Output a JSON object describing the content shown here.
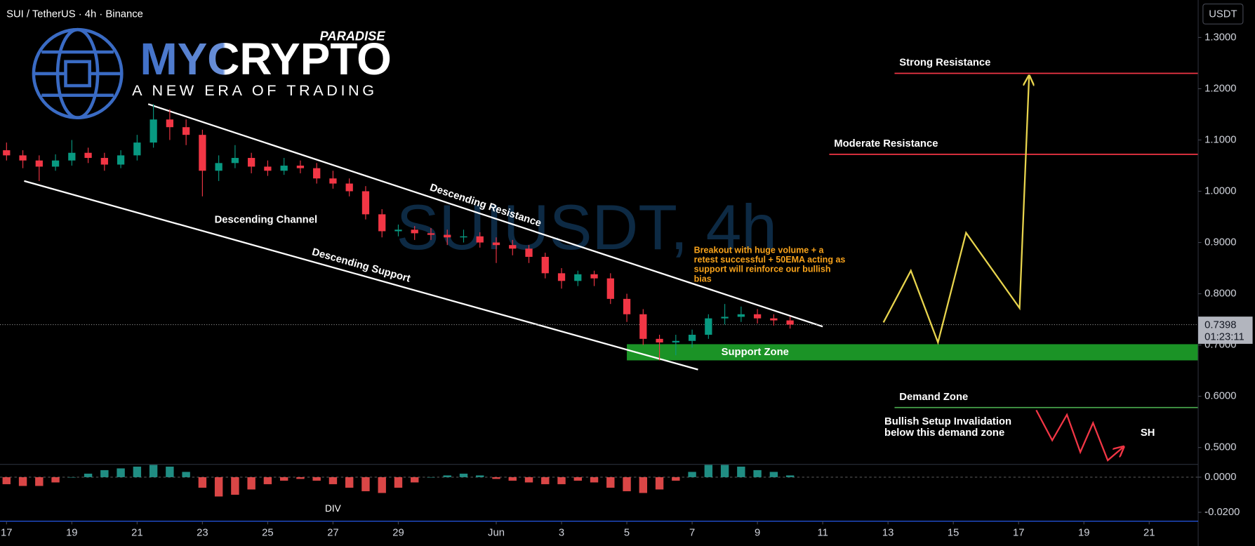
{
  "header": {
    "symbol": "SUI / TetherUS · 4h · Binance",
    "watermark": "SUIUSDT, 4h",
    "logo": {
      "brand": "MYCRYPTO",
      "tag": "PARADISE",
      "slogan": "A NEW ERA OF TRADING"
    }
  },
  "chart_data": {
    "type": "candlestick",
    "x": [
      0,
      0.5,
      1,
      1.5,
      2,
      2.5,
      3,
      3.5,
      4,
      4.5,
      5,
      5.5,
      6,
      6.5,
      7,
      7.5,
      8,
      8.5,
      9,
      9.5,
      10,
      10.5,
      11,
      11.5,
      12,
      12.5,
      13,
      13.5,
      14,
      14.5,
      15,
      15.5,
      16,
      16.5,
      17,
      17.5,
      18,
      18.5,
      19,
      19.5,
      20,
      20.5,
      21,
      21.5,
      22,
      22.5,
      23,
      23.5,
      24
    ],
    "open": [
      1.08,
      1.07,
      1.06,
      1.048,
      1.06,
      1.075,
      1.065,
      1.052,
      1.07,
      1.095,
      1.14,
      1.125,
      1.11,
      1.04,
      1.055,
      1.065,
      1.048,
      1.04,
      1.05,
      1.045,
      1.025,
      1.015,
      1.0,
      0.955,
      0.922,
      0.925,
      0.918,
      0.915,
      0.91,
      0.912,
      0.9,
      0.895,
      0.888,
      0.872,
      0.84,
      0.825,
      0.838,
      0.83,
      0.79,
      0.76,
      0.712,
      0.705,
      0.708,
      0.72,
      0.752,
      0.755,
      0.76,
      0.752,
      0.748
    ],
    "high": [
      1.095,
      1.08,
      1.07,
      1.072,
      1.1,
      1.085,
      1.075,
      1.08,
      1.11,
      1.17,
      1.16,
      1.14,
      1.12,
      1.07,
      1.09,
      1.075,
      1.06,
      1.065,
      1.06,
      1.055,
      1.04,
      1.025,
      1.01,
      0.965,
      0.935,
      0.932,
      0.928,
      0.925,
      0.925,
      0.92,
      0.91,
      0.905,
      0.895,
      0.88,
      0.85,
      0.845,
      0.845,
      0.84,
      0.8,
      0.77,
      0.72,
      0.72,
      0.73,
      0.76,
      0.78,
      0.775,
      0.77,
      0.76,
      0.755
    ],
    "low": [
      1.06,
      1.045,
      1.02,
      1.04,
      1.05,
      1.055,
      1.04,
      1.045,
      1.06,
      1.085,
      1.1,
      1.09,
      0.99,
      1.02,
      1.045,
      1.035,
      1.03,
      1.032,
      1.035,
      1.015,
      1.005,
      0.99,
      0.945,
      0.91,
      0.912,
      0.905,
      0.905,
      0.895,
      0.9,
      0.89,
      0.86,
      0.875,
      0.86,
      0.83,
      0.81,
      0.815,
      0.815,
      0.78,
      0.745,
      0.7,
      0.67,
      0.68,
      0.695,
      0.712,
      0.74,
      0.745,
      0.742,
      0.738,
      0.732
    ],
    "close": [
      1.07,
      1.06,
      1.048,
      1.06,
      1.075,
      1.065,
      1.052,
      1.07,
      1.095,
      1.14,
      1.125,
      1.11,
      1.04,
      1.055,
      1.065,
      1.048,
      1.04,
      1.05,
      1.045,
      1.025,
      1.015,
      1.0,
      0.955,
      0.922,
      0.925,
      0.918,
      0.915,
      0.91,
      0.912,
      0.9,
      0.895,
      0.888,
      0.872,
      0.84,
      0.825,
      0.838,
      0.83,
      0.79,
      0.76,
      0.712,
      0.705,
      0.708,
      0.72,
      0.752,
      0.755,
      0.76,
      0.752,
      0.748,
      0.7398
    ],
    "up_color": "#089981",
    "down_color": "#f23645",
    "xlim": [
      -0.2,
      36.5
    ],
    "xticks": [
      {
        "value": 0,
        "label": "17"
      },
      {
        "value": 2,
        "label": "19"
      },
      {
        "value": 4,
        "label": "21"
      },
      {
        "value": 6,
        "label": "23"
      },
      {
        "value": 8,
        "label": "25"
      },
      {
        "value": 10,
        "label": "27"
      },
      {
        "value": 12,
        "label": "29"
      },
      {
        "value": 15,
        "label": "Jun"
      },
      {
        "value": 17,
        "label": "3"
      },
      {
        "value": 19,
        "label": "5"
      },
      {
        "value": 21,
        "label": "7"
      },
      {
        "value": 23,
        "label": "9"
      },
      {
        "value": 25,
        "label": "11"
      },
      {
        "value": 27,
        "label": "13"
      },
      {
        "value": 29,
        "label": "15"
      },
      {
        "value": 31,
        "label": "17"
      },
      {
        "value": 33,
        "label": "19"
      },
      {
        "value": 35,
        "label": "21"
      }
    ],
    "ylim": [
      0.4,
      1.37
    ],
    "yticks": [
      {
        "value": 1.3,
        "label": "1.3000"
      },
      {
        "value": 1.2,
        "label": "1.2000"
      },
      {
        "value": 1.1,
        "label": "1.1000"
      },
      {
        "value": 1.0,
        "label": "1.0000"
      },
      {
        "value": 0.9,
        "label": "0.9000"
      },
      {
        "value": 0.8,
        "label": "0.8000"
      },
      {
        "value": 0.7,
        "label": "0.7000"
      },
      {
        "value": 0.6,
        "label": "0.6000"
      },
      {
        "value": 0.5,
        "label": "0.5000"
      }
    ],
    "y_unit": "USDT",
    "last_price": 0.7398,
    "countdown": "01:23:11",
    "levels": [
      {
        "name": "Strong Resistance",
        "value": 1.23,
        "x_from": 27.2,
        "color": "#f23645"
      },
      {
        "name": "Moderate Resistance",
        "value": 1.072,
        "x_from": 25.2,
        "color": "#f23645"
      },
      {
        "name": "Demand Zone",
        "value": 0.578,
        "x_from": 27.2,
        "color": "#4caf50"
      }
    ],
    "zones": [
      {
        "name": "Support Zone",
        "range": [
          0.67,
          0.7016
        ],
        "x_from": 19.0,
        "color": "#1ea32a"
      }
    ],
    "trendlines": [
      {
        "name": "Descending Resistance",
        "x": [
          4.34,
          25.0
        ],
        "y": [
          1.17,
          0.736
        ]
      },
      {
        "name": "Descending Support",
        "x": [
          0.54,
          21.18
        ],
        "y": [
          1.02,
          0.652
        ]
      }
    ],
    "projections": [
      {
        "color": "#e8d44d",
        "x": [
          26.86,
          27.7,
          28.53,
          29.39,
          31.03,
          31.32
        ],
        "y": [
          0.744,
          0.845,
          0.705,
          0.919,
          0.772,
          1.223
        ]
      },
      {
        "color": "#f23645",
        "x": [
          31.54,
          32.03,
          32.48,
          32.89,
          33.28,
          33.73,
          34.19
        ],
        "y": [
          0.573,
          0.514,
          0.564,
          0.491,
          0.548,
          0.475,
          0.5
        ]
      }
    ],
    "annotations": [
      "Descending Channel",
      "SH",
      "DIV"
    ],
    "note": [
      "Breakout with huge volume + a",
      "retest successful + 50EMA acting as",
      "support will reinforce our bullish",
      "bias"
    ],
    "invalidation": [
      "Bullish Setup Invalidation",
      "below this demand zone"
    ],
    "indicator": {
      "type": "histogram",
      "values": [
        -0.004,
        -0.005,
        -0.005,
        -0.003,
        0.0,
        0.002,
        0.004,
        0.005,
        0.006,
        0.007,
        0.006,
        0.003,
        -0.006,
        -0.011,
        -0.01,
        -0.007,
        -0.004,
        -0.002,
        -0.001,
        -0.002,
        -0.004,
        -0.006,
        -0.008,
        -0.009,
        -0.006,
        -0.003,
        0.0,
        0.001,
        0.002,
        0.001,
        -0.001,
        -0.002,
        -0.003,
        -0.004,
        -0.004,
        -0.002,
        -0.003,
        -0.006,
        -0.008,
        -0.009,
        -0.007,
        -0.002,
        0.003,
        0.007,
        0.007,
        0.006,
        0.004,
        0.003,
        0.001
      ],
      "pos_color": "#26a69a",
      "neg_color": "#ff5252",
      "ylim": [
        -0.0255,
        0.0073
      ],
      "yticks": [
        {
          "value": 0,
          "label": "0.0000"
        },
        {
          "value": -0.02,
          "label": "-0.0200"
        }
      ]
    }
  }
}
